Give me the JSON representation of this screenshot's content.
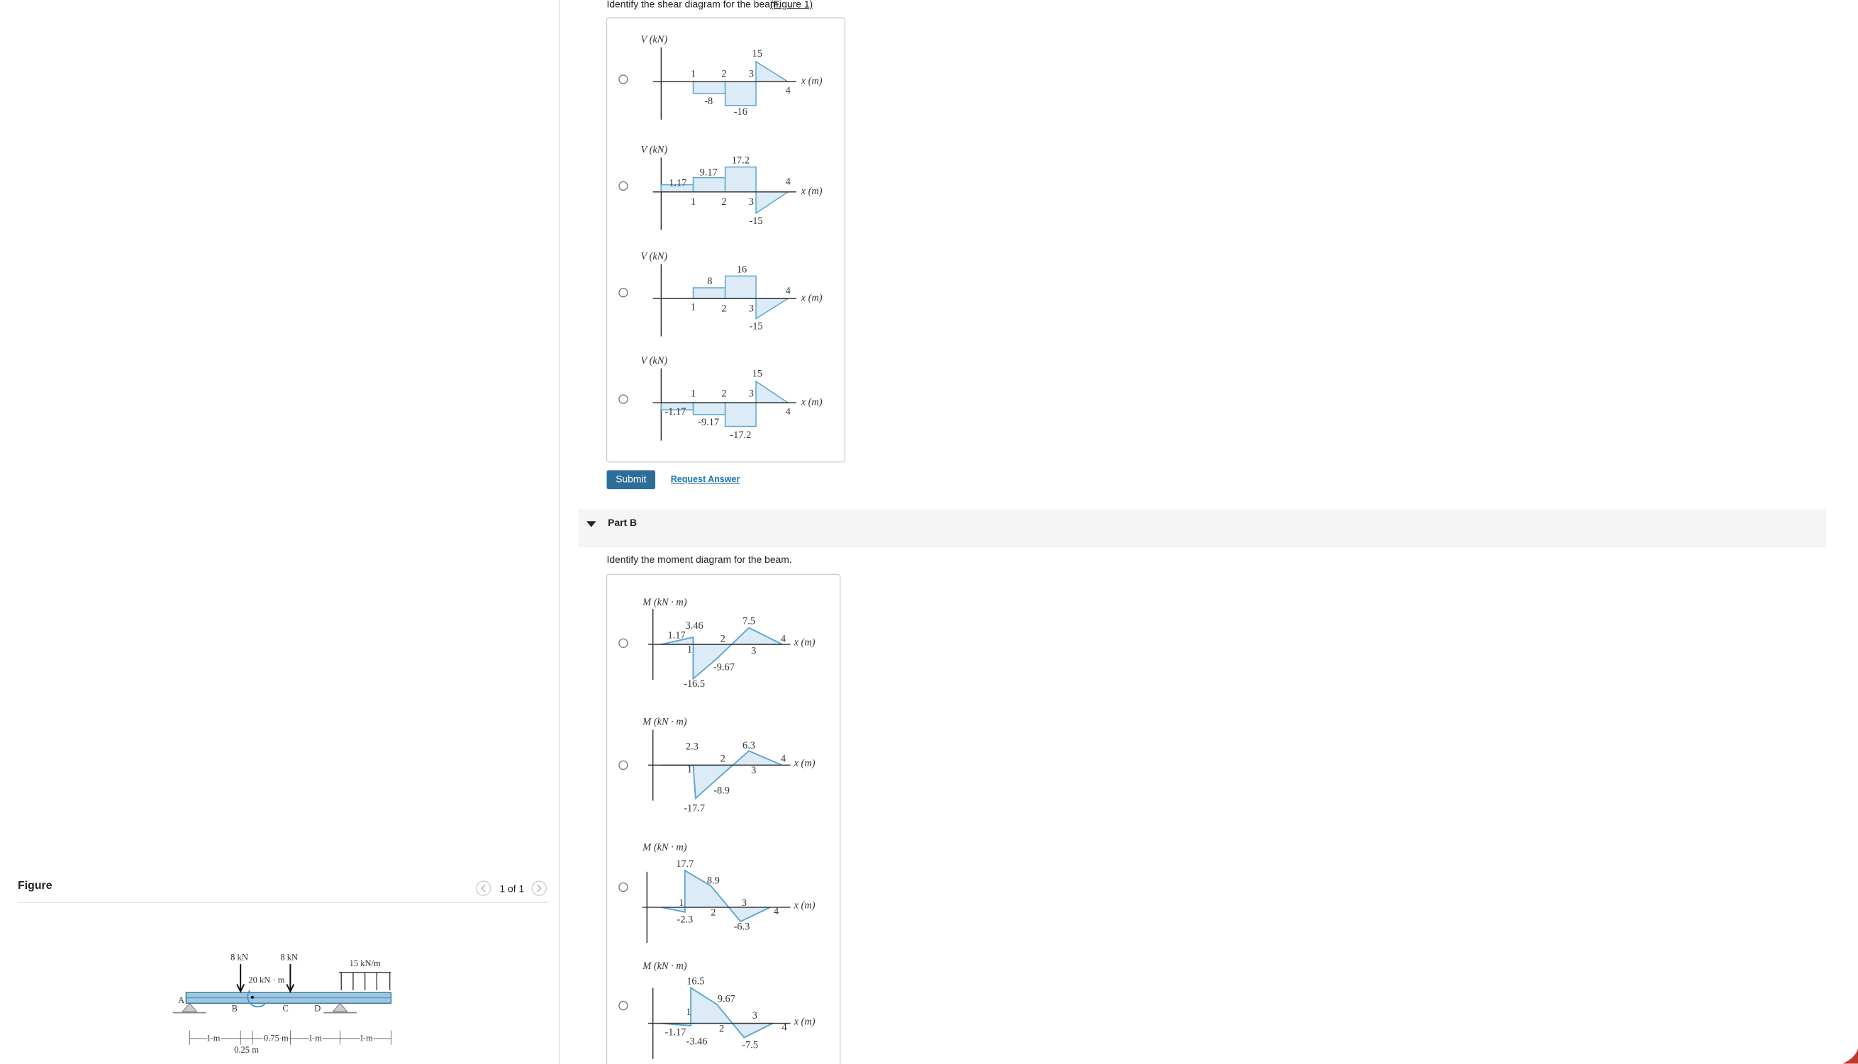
{
  "figure": {
    "heading": "Figure",
    "pager": "1 of 1",
    "labels": [
      "8 kN",
      "8 kN",
      "15 kN/m",
      "20 kN · m",
      "A",
      "B",
      "C",
      "D",
      "1 m",
      "0.75 m",
      "1 m",
      "1 m",
      "0.25 m"
    ]
  },
  "part_a": {
    "question": "Identify the shear diagram for the beam.",
    "figure_link": "(Figure 1)",
    "submit": "Submit",
    "request_answer": "Request Answer",
    "options": [
      {
        "y_axis": "V (kN)",
        "x_axis": "x (m)",
        "labels": [
          "1",
          "2",
          "3",
          "15",
          "-8",
          "-16",
          "4"
        ]
      },
      {
        "y_axis": "V (kN)",
        "x_axis": "x (m)",
        "labels": [
          "1.17",
          "9.17",
          "17.2",
          "1",
          "2",
          "3",
          "-15",
          "4"
        ]
      },
      {
        "y_axis": "V (kN)",
        "x_axis": "x (m)",
        "labels": [
          "8",
          "16",
          "1",
          "2",
          "3",
          "-15",
          "4"
        ]
      },
      {
        "y_axis": "V (kN)",
        "x_axis": "x (m)",
        "labels": [
          "1",
          "2",
          "3",
          "15",
          "-1.17",
          "-9.17",
          "-17.2",
          "4"
        ]
      }
    ]
  },
  "part_b": {
    "title": "Part B",
    "question": "Identify the moment diagram for the beam.",
    "options": [
      {
        "y_axis": "M (kN · m)",
        "x_axis": "x (m)",
        "labels": [
          "3.46",
          "1.17",
          "1",
          "2",
          "3",
          "7.5",
          "4",
          "-9.67",
          "-16.5"
        ]
      },
      {
        "y_axis": "M (kN · m)",
        "x_axis": "x (m)",
        "labels": [
          "2.3",
          "1",
          "2",
          "-8.9",
          "6.3",
          "3",
          "4",
          "-17.7"
        ]
      },
      {
        "y_axis": "M (kN · m)",
        "x_axis": "x (m)",
        "labels": [
          "17.7",
          "8.9",
          "1",
          "-2.3",
          "2",
          "3",
          "-6.3",
          "4"
        ]
      },
      {
        "y_axis": "M (kN · m)",
        "x_axis": "x (m)",
        "labels": [
          "16.5",
          "9.67",
          "1",
          "-1.17",
          "-3.46",
          "2",
          "3",
          "-7.5",
          "4"
        ]
      }
    ]
  }
}
